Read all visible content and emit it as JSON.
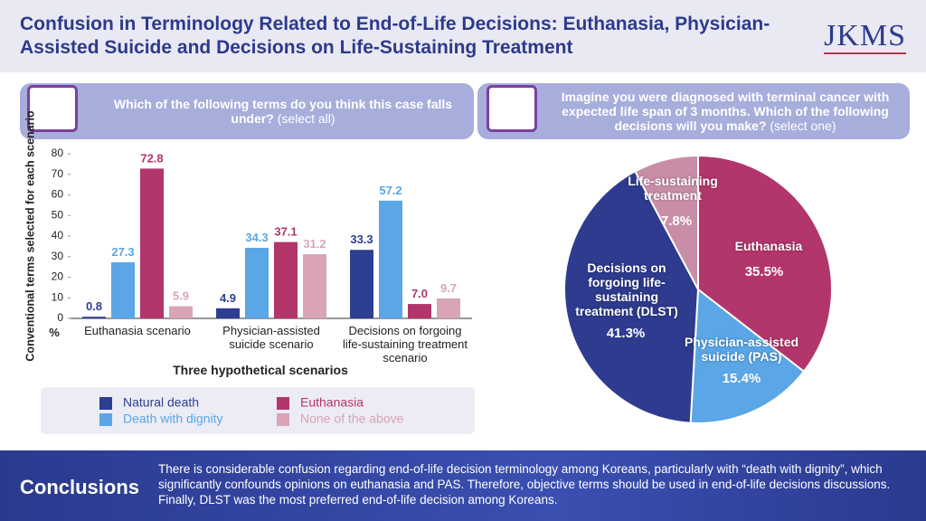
{
  "header": {
    "title": "Confusion in Terminology Related to End-of-Life Decisions: Euthanasia, Physician-Assisted Suicide and Decisions on Life-Sustaining Treatment",
    "logo": "JKMS"
  },
  "chart_data": [
    {
      "type": "bar",
      "title": "Which of the following terms do you think this case falls under?",
      "subtitle": "(select all)",
      "ylabel": "Conventional terms selected for each scenario",
      "yunit": "%",
      "xlabel": "Three hypothetical scenarios",
      "categories": [
        "Euthanasia scenario",
        "Physician-assisted suicide scenario",
        "Decisions on forgoing life-sustaining treatment scenario"
      ],
      "ylim": [
        0,
        80
      ],
      "yticks": [
        0,
        10,
        20,
        30,
        40,
        50,
        60,
        70,
        80
      ],
      "series": [
        {
          "name": "Natural death",
          "color": "#2c3f90",
          "values": [
            0.8,
            4.9,
            33.3
          ]
        },
        {
          "name": "Death with dignity",
          "color": "#5aa6e6",
          "values": [
            27.3,
            34.3,
            57.2
          ]
        },
        {
          "name": "Euthanasia",
          "color": "#b2356c",
          "values": [
            72.8,
            37.1,
            7.0
          ],
          "value_labels": [
            "72.8",
            "37.1",
            "7.0"
          ]
        },
        {
          "name": "None of the above",
          "color": "#d8a4b6",
          "values": [
            5.9,
            31.2,
            9.7
          ]
        }
      ]
    },
    {
      "type": "pie",
      "title": "Imagine you were diagnosed with terminal cancer with expected life span of 3 months. Which of the following decisions will you make?",
      "subtitle": "(select one)",
      "categories": [
        "Euthanasia",
        "Physician-assisted suicide (PAS)",
        "Decisions on forgoing life-sustaining treatment (DLST)",
        "Life-sustaining treatment"
      ],
      "values": [
        35.5,
        15.4,
        41.3,
        7.8
      ],
      "value_labels": [
        "35.5%",
        "15.4%",
        "41.3%",
        "7.8%"
      ],
      "colors": [
        "#b2356c",
        "#5aa6e6",
        "#2e3b8e",
        "#c98ea7"
      ]
    }
  ],
  "conclusions": {
    "heading": "Conclusions",
    "text": "There is considerable confusion regarding end-of-life decision terminology among Koreans, particularly with “death with dignity”, which significantly confounds opinions on euthanasia and PAS. Therefore, objective terms should be used in end-of-life decisions discussions. Finally, DLST was the most preferred end-of-life decision among Koreans."
  }
}
